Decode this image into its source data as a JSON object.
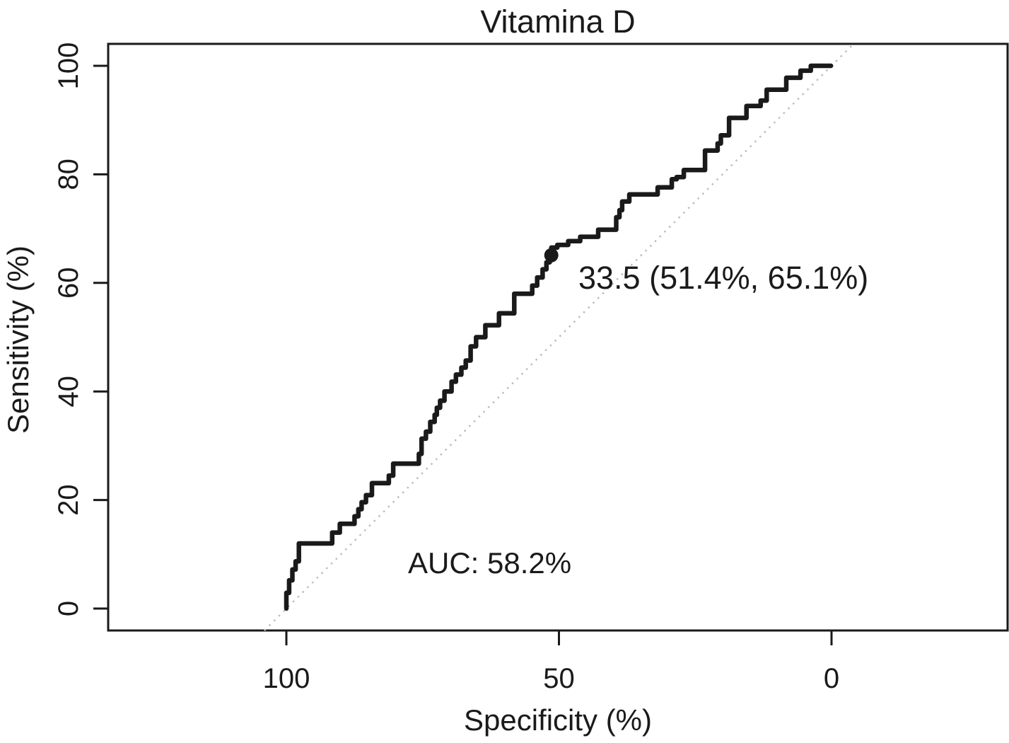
{
  "chart_data": {
    "type": "line",
    "chart_kind": "roc_curve",
    "title": "Vitamina D",
    "xlabel": "Specificity (%)",
    "ylabel": "Sensitivity (%)",
    "x_ticks": [
      100,
      50,
      0
    ],
    "y_ticks": [
      0,
      20,
      40,
      60,
      80,
      100
    ],
    "xlim": [
      100,
      0
    ],
    "ylim": [
      0,
      100
    ],
    "x_axis_reversed": true,
    "grid": false,
    "legend": "none",
    "annotations": {
      "auc_label": "AUC: 58.2%",
      "best_threshold_label": "33.5 (51.4%, 65.1%)"
    },
    "marked_point": {
      "threshold": 33.5,
      "specificity_pct": 51.4,
      "sensitivity_pct": 65.1
    },
    "reference_line": {
      "kind": "chance-diagonal",
      "style": "dotted",
      "color": "#bdbdbd"
    },
    "colors": {
      "curve": "#1a1a1a",
      "text": "#1a1a1a",
      "axis": "#1a1a1a",
      "diagonal": "#bdbdbd"
    },
    "series": [
      {
        "name": "ROC curve",
        "points_format": [
          "specificity_pct",
          "sensitivity_pct"
        ],
        "points": [
          [
            100,
            0
          ],
          [
            100,
            2.9
          ],
          [
            99.5,
            2.9
          ],
          [
            99.5,
            5.2
          ],
          [
            98.9,
            5.2
          ],
          [
            98.9,
            7.2
          ],
          [
            98.3,
            7.2
          ],
          [
            98.3,
            8.7
          ],
          [
            97.7,
            8.7
          ],
          [
            97.7,
            12
          ],
          [
            91.6,
            12
          ],
          [
            91.6,
            14
          ],
          [
            90.2,
            14
          ],
          [
            90.2,
            15.6
          ],
          [
            87.5,
            15.6
          ],
          [
            87.5,
            17
          ],
          [
            86.8,
            17
          ],
          [
            86.8,
            18.3
          ],
          [
            86.2,
            18.3
          ],
          [
            86.2,
            19.6
          ],
          [
            85.4,
            19.6
          ],
          [
            85.4,
            20.9
          ],
          [
            84.3,
            20.9
          ],
          [
            84.3,
            23.1
          ],
          [
            81.2,
            23.1
          ],
          [
            81.2,
            24.5
          ],
          [
            80.4,
            24.5
          ],
          [
            80.4,
            26.7
          ],
          [
            75.7,
            26.7
          ],
          [
            75.7,
            28.5
          ],
          [
            75.2,
            28.5
          ],
          [
            75.2,
            31.3
          ],
          [
            74.4,
            31.3
          ],
          [
            74.4,
            32.6
          ],
          [
            73.6,
            32.6
          ],
          [
            73.6,
            34.4
          ],
          [
            72.8,
            34.4
          ],
          [
            72.8,
            35.7
          ],
          [
            72.4,
            35.7
          ],
          [
            72.4,
            37
          ],
          [
            71.8,
            37
          ],
          [
            71.8,
            38.3
          ],
          [
            71,
            38.3
          ],
          [
            71,
            40
          ],
          [
            69.7,
            40
          ],
          [
            69.7,
            41.8
          ],
          [
            68.9,
            41.8
          ],
          [
            68.9,
            43.1
          ],
          [
            67.9,
            43.1
          ],
          [
            67.9,
            44.4
          ],
          [
            67.1,
            44.4
          ],
          [
            67.1,
            45.7
          ],
          [
            66.2,
            45.7
          ],
          [
            66.2,
            48.3
          ],
          [
            65.2,
            48.3
          ],
          [
            65.2,
            50
          ],
          [
            63.5,
            50
          ],
          [
            63.5,
            52.2
          ],
          [
            61,
            52.2
          ],
          [
            61,
            54.4
          ],
          [
            58.2,
            54.4
          ],
          [
            58.2,
            58
          ],
          [
            54.9,
            58
          ],
          [
            54.9,
            59.5
          ],
          [
            54,
            59.5
          ],
          [
            54,
            61
          ],
          [
            53,
            61
          ],
          [
            53,
            62.5
          ],
          [
            52.3,
            62.5
          ],
          [
            52.3,
            63.8
          ],
          [
            51.7,
            63.8
          ],
          [
            51.7,
            65.1
          ],
          [
            51.4,
            65.1
          ],
          [
            51.4,
            66.5
          ],
          [
            50.3,
            66.5
          ],
          [
            50.3,
            67
          ],
          [
            48.3,
            67
          ],
          [
            48.3,
            67.7
          ],
          [
            46.1,
            67.7
          ],
          [
            46.1,
            68.5
          ],
          [
            42.8,
            68.5
          ],
          [
            42.8,
            69.8
          ],
          [
            39.5,
            69.8
          ],
          [
            39.5,
            72.1
          ],
          [
            38.9,
            72.1
          ],
          [
            38.9,
            73.4
          ],
          [
            38.4,
            73.4
          ],
          [
            38.4,
            75
          ],
          [
            37.1,
            75
          ],
          [
            37.1,
            76.3
          ],
          [
            31.9,
            76.3
          ],
          [
            31.9,
            77.6
          ],
          [
            29.3,
            77.6
          ],
          [
            29.3,
            79.1
          ],
          [
            28.4,
            79.1
          ],
          [
            28.4,
            79.5
          ],
          [
            27.1,
            79.5
          ],
          [
            27.1,
            80.8
          ],
          [
            23.2,
            80.8
          ],
          [
            23.2,
            84.4
          ],
          [
            20.9,
            84.4
          ],
          [
            20.9,
            85.7
          ],
          [
            20.3,
            85.7
          ],
          [
            20.3,
            87.2
          ],
          [
            18.8,
            87.2
          ],
          [
            18.8,
            90.4
          ],
          [
            15.6,
            90.4
          ],
          [
            15.6,
            92.6
          ],
          [
            13,
            92.6
          ],
          [
            13,
            93.6
          ],
          [
            11.9,
            93.6
          ],
          [
            11.9,
            95.6
          ],
          [
            8.3,
            95.6
          ],
          [
            8.3,
            97.8
          ],
          [
            5.7,
            97.8
          ],
          [
            5.7,
            99.1
          ],
          [
            3.8,
            99.1
          ],
          [
            3.8,
            100
          ],
          [
            0.1,
            100
          ]
        ]
      }
    ]
  }
}
